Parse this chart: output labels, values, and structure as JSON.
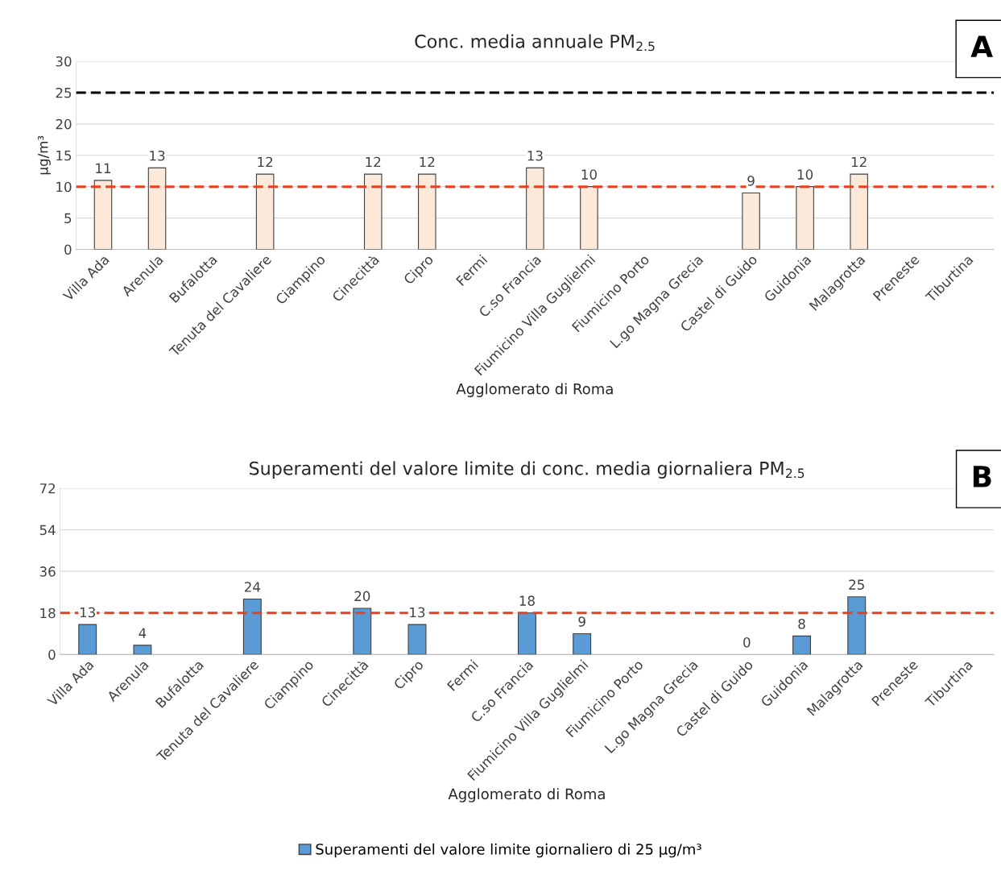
{
  "chart_data": [
    {
      "type": "bar",
      "title": "Conc. media annuale PM$_{2.5}$",
      "ylabel": "µg/m³",
      "xlabel": "Agglomerato di Roma",
      "categories": [
        "Villa Ada",
        "Arenula",
        "Bufalotta",
        "Tenuta del Cavaliere",
        "Ciampino",
        "Cinecittà",
        "Cipro",
        "Fermi",
        "C.so Francia",
        "Fiumicino Villa Guglielmi",
        "Fiumicino Porto",
        "L.go Magna Grecia",
        "Castel di Guido",
        "Guidonia",
        "Malagrotta",
        "Preneste",
        "Tiburtina"
      ],
      "series": [
        {
          "color": "#fde9d9",
          "values": [
            11,
            13,
            null,
            12,
            null,
            12,
            12,
            null,
            13,
            10,
            null,
            null,
            9,
            10,
            12,
            null,
            null
          ]
        }
      ],
      "ylim": [
        0,
        30
      ],
      "yticks": [
        0,
        5,
        10,
        15,
        20,
        25,
        30
      ],
      "grid": "y",
      "data_labels": true,
      "ref_lines": [
        {
          "axis": "y",
          "value": 25,
          "color": "#000000",
          "line_style": "dashed"
        },
        {
          "axis": "y",
          "value": 10,
          "color": "#e8401c",
          "line_style": "dashed"
        }
      ],
      "annotations": [
        "A"
      ]
    },
    {
      "type": "bar",
      "title": "Superamenti del valore limite di conc. media giornaliera PM$_{2.5}$",
      "xlabel": "Agglomerato di Roma",
      "categories": [
        "Villa Ada",
        "Arenula",
        "Bufalotta",
        "Tenuta del Cavaliere",
        "Ciampino",
        "Cinecittà",
        "Cipro",
        "Fermi",
        "C.so Francia",
        "Fiumicino Villa Guglielmi",
        "Fiumicino Porto",
        "L.go Magna Grecia",
        "Castel di Guido",
        "Guidonia",
        "Malagrotta",
        "Preneste",
        "Tiburtina"
      ],
      "series": [
        {
          "name": "Superamenti del valore limite giornaliero di 25 µg/m³",
          "color": "#5b9bd5",
          "values": [
            13,
            4,
            null,
            24,
            null,
            20,
            13,
            null,
            18,
            9,
            null,
            null,
            0,
            8,
            25,
            null,
            null
          ]
        }
      ],
      "ylim": [
        0,
        72
      ],
      "yticks": [
        0,
        18,
        36,
        54,
        72
      ],
      "grid": "y",
      "data_labels": true,
      "legend": "bottom",
      "ref_lines": [
        {
          "axis": "y",
          "value": 18,
          "color": "#e8401c",
          "line_style": "dashed"
        }
      ],
      "annotations": [
        "B"
      ]
    }
  ]
}
